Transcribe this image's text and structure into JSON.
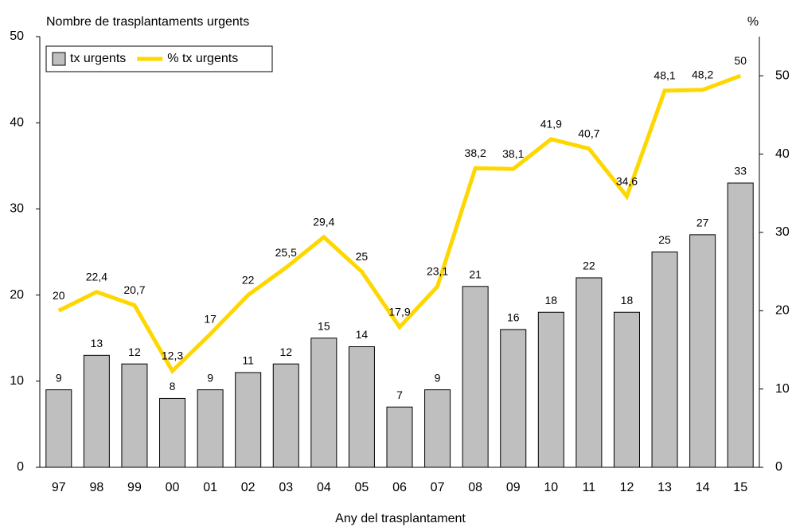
{
  "chart_data": {
    "type": "bar",
    "y_label": "Nombre de trasplantaments urgents",
    "y2_label": "%",
    "x_label": "Any del trasplantament",
    "categories": [
      "97",
      "98",
      "99",
      "00",
      "01",
      "02",
      "03",
      "04",
      "05",
      "06",
      "07",
      "08",
      "09",
      "10",
      "11",
      "12",
      "13",
      "14",
      "15"
    ],
    "series": [
      {
        "name": "tx urgents",
        "type": "bar",
        "color": "#bfbfbf",
        "values": [
          9,
          13,
          12,
          8,
          9,
          11,
          12,
          15,
          14,
          7,
          9,
          21,
          16,
          18,
          22,
          18,
          25,
          27,
          33
        ]
      },
      {
        "name": "% tx urgents",
        "type": "line",
        "axis": "y2",
        "color": "#ffd700",
        "values": [
          20,
          22.4,
          20.7,
          12.3,
          17,
          22,
          25.5,
          29.4,
          25,
          17.9,
          23.1,
          38.2,
          38.1,
          41.9,
          40.7,
          34.6,
          48.1,
          48.2,
          50
        ],
        "value_labels": [
          "20",
          "22,4",
          "20,7",
          "12,3",
          "17",
          "22",
          "25,5",
          "29,4",
          "25",
          "17,9",
          "23,1",
          "38,2",
          "38,1",
          "41,9",
          "40,7",
          "34,6",
          "48,1",
          "48,2",
          "50"
        ]
      }
    ],
    "ylim": [
      0,
      50
    ],
    "yticks": [
      0,
      10,
      20,
      30,
      40,
      50
    ],
    "y2lim": [
      0,
      55
    ],
    "y2ticks": [
      0,
      10,
      20,
      30,
      40,
      50
    ],
    "legend": "top-left"
  }
}
